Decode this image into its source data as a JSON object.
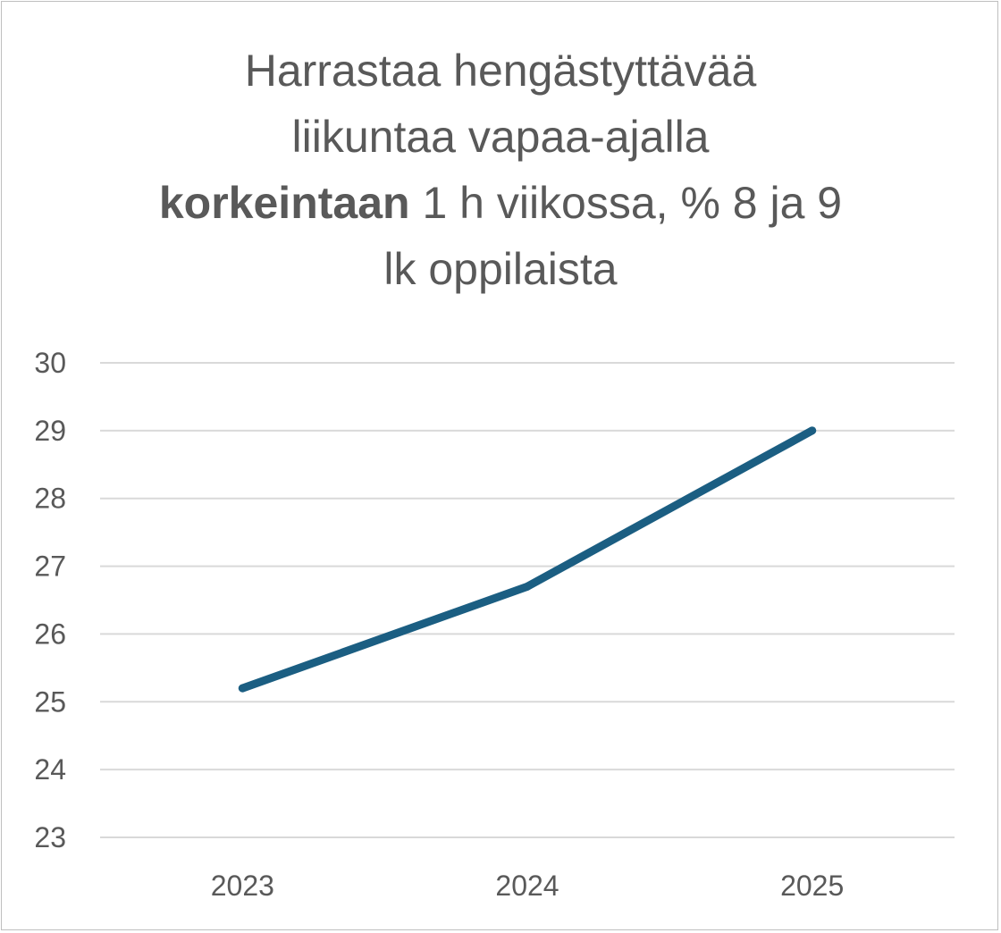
{
  "chart_data": {
    "type": "line",
    "title_lines": [
      {
        "bold": "",
        "text": "Harrastaa hengästyttävää"
      },
      {
        "bold": "",
        "text": "liikuntaa vapaa-ajalla"
      },
      {
        "bold": "korkeintaan",
        "text": " 1 h viikossa, % 8 ja 9"
      },
      {
        "bold": "",
        "text": "lk oppilaista"
      }
    ],
    "categories": [
      "2023",
      "2024",
      "2025"
    ],
    "series": [
      {
        "values": [
          25.2,
          26.7,
          29.0
        ],
        "color": "#1b5e82"
      }
    ],
    "ylim": [
      23,
      30
    ],
    "yticks": [
      "23",
      "24",
      "25",
      "26",
      "27",
      "28",
      "29",
      "30"
    ],
    "grid": true,
    "legend": "none"
  }
}
